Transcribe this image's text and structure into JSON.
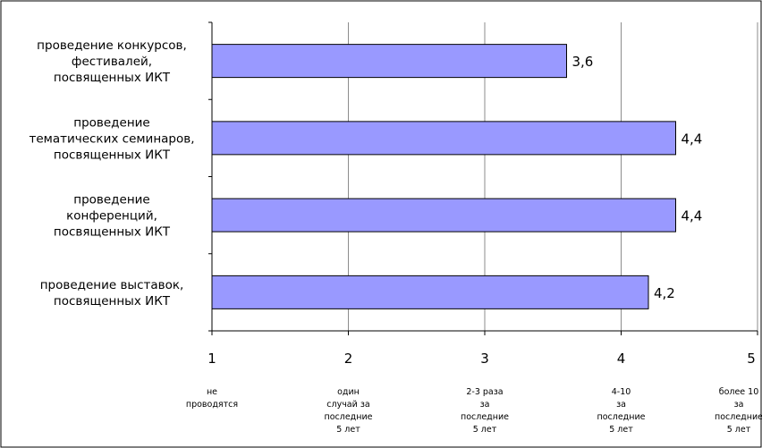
{
  "chart_data": {
    "type": "bar",
    "orientation": "horizontal",
    "categories": [
      "проведение конкурсов, фестивалей, посвященных ИКТ",
      "проведение тематических семинаров, посвященных ИКТ",
      "проведение конференций, посвященных ИКТ",
      "проведение выставок, посвященных ИКТ"
    ],
    "category_lines": [
      [
        "проведение конкурсов,",
        "фестивалей,",
        "посвященных ИКТ"
      ],
      [
        "проведение",
        "тематических семинаров,",
        "посвященных ИКТ"
      ],
      [
        "проведение",
        "конференций,",
        "посвященных ИКТ"
      ],
      [
        "проведение выставок,",
        "посвященных ИКТ"
      ]
    ],
    "values": [
      3.6,
      4.4,
      4.4,
      4.2
    ],
    "value_labels": [
      "3,6",
      "4,4",
      "4,4",
      "4,2"
    ],
    "xlim": [
      1,
      5
    ],
    "xticks": [
      1,
      2,
      3,
      4,
      5
    ],
    "xtick_labels": [
      "1",
      "2",
      "3",
      "4",
      "5"
    ],
    "xtick_descriptions": [
      [
        "не",
        "проводятся"
      ],
      [
        "один",
        "случай за",
        "последние",
        "5 лет"
      ],
      [
        "2-3 раза",
        "за",
        "последние",
        "5 лет"
      ],
      [
        "4-10",
        "за",
        "последние",
        "5 лет"
      ],
      [
        "более 10",
        "за",
        "последние",
        "5 лет"
      ]
    ],
    "grid": "vertical",
    "legend": "none",
    "bar_color": "#9999ff",
    "bar_edge_color": "#000000"
  }
}
